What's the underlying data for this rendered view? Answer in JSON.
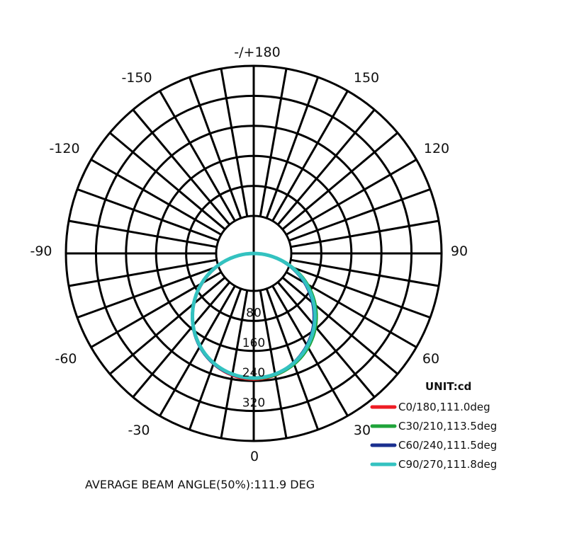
{
  "chart_data": {
    "type": "polar",
    "title": "",
    "unit_label": "UNIT:cd",
    "angle_labels": [
      "-/+180",
      "150",
      "120",
      "90",
      "60",
      "30",
      "0",
      "-30",
      "-60",
      "-90",
      "-120",
      "-150"
    ],
    "radial_labels": [
      "80",
      "160",
      "240",
      "320"
    ],
    "radial_max": 400,
    "grid": true,
    "legend_position": "bottom-right",
    "series": [
      {
        "name": "C0/180,111.0deg",
        "color": "#ee1c24",
        "peak": 336
      },
      {
        "name": "C30/210,113.5deg",
        "color": "#1fa33a",
        "peak": 334
      },
      {
        "name": "C60/240,111.5deg",
        "color": "#1a2f8f",
        "peak": 333
      },
      {
        "name": "C90/270,111.8deg",
        "color": "#33c2c0",
        "peak": 332
      }
    ],
    "footer": "AVERAGE BEAM ANGLE(50%):111.9 DEG"
  }
}
